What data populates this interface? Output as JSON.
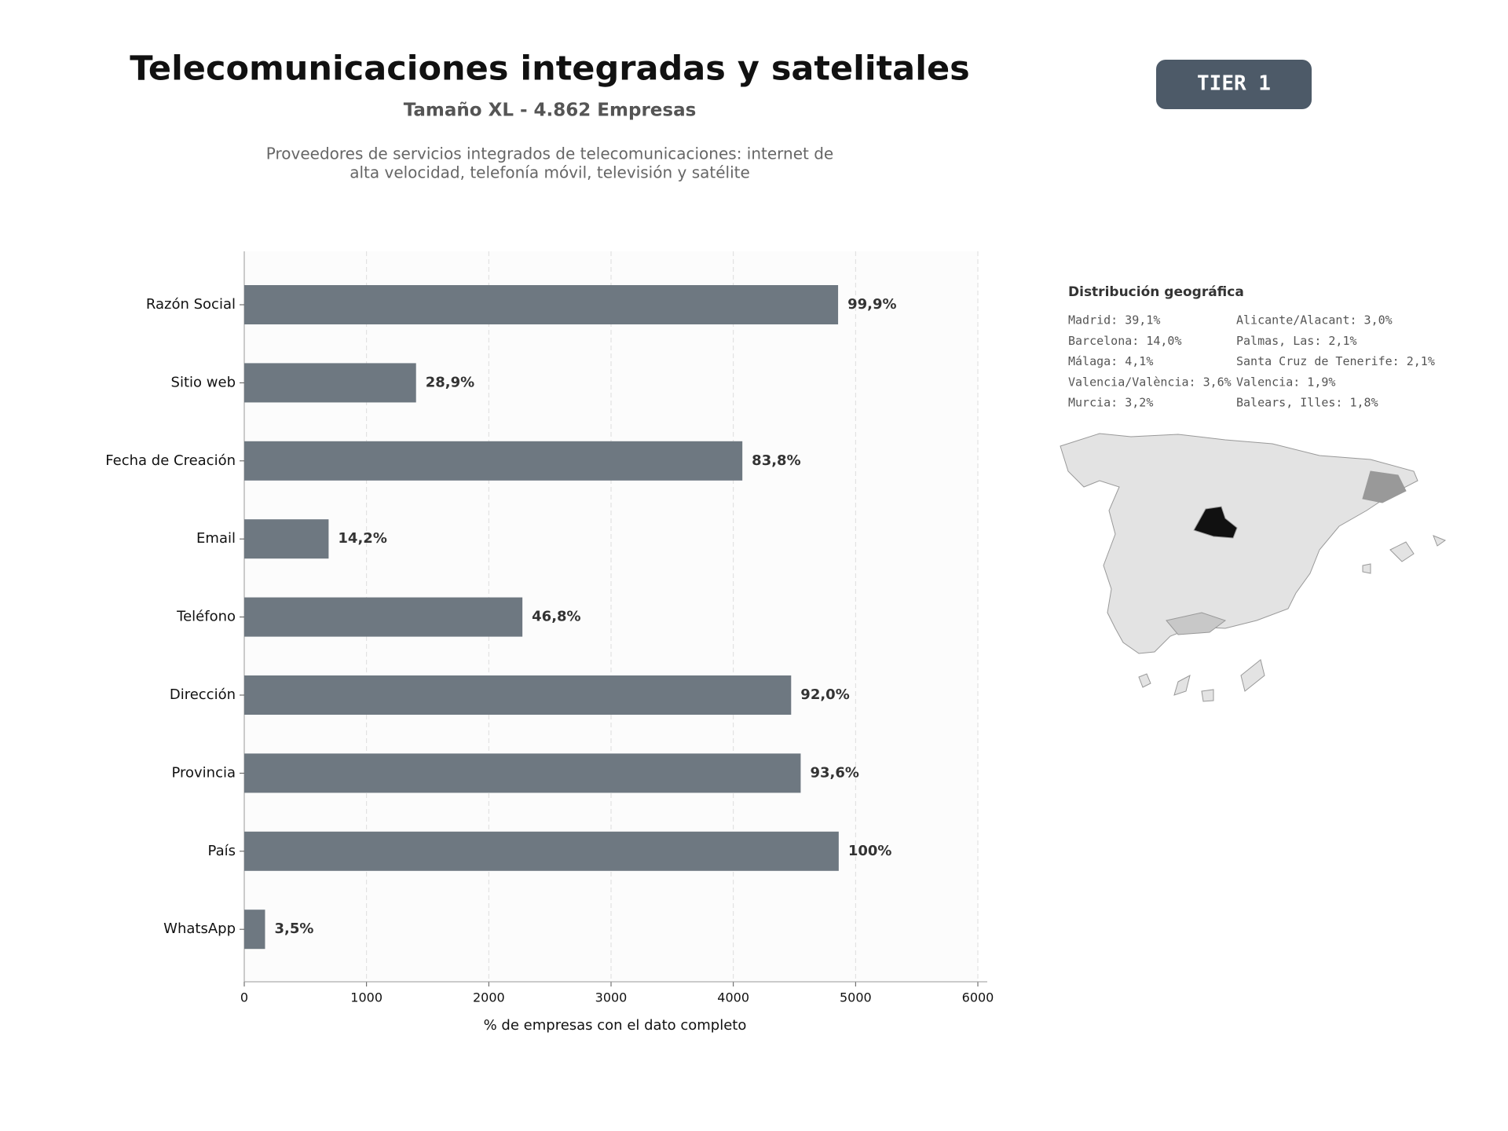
{
  "chart_data": {
    "type": "bar",
    "orientation": "horizontal",
    "title": "Telecomunicaciones integradas y satelitales",
    "subtitle": "Tamaño XL - 4.862 Empresas",
    "description": [
      "Proveedores de servicios integrados de telecomunicaciones: internet de",
      "alta velocidad, telefonía móvil, televisión y satélite"
    ],
    "xlabel": "% de empresas con el dato completo",
    "categories": [
      "Razón Social",
      "Sitio web",
      "Fecha de Creación",
      "Email",
      "Teléfono",
      "Dirección",
      "Provincia",
      "País",
      "WhatsApp"
    ],
    "values": [
      4857,
      1405,
      4074,
      690,
      2275,
      4473,
      4551,
      4862,
      170
    ],
    "value_labels": [
      "99,9%",
      "28,9%",
      "83,8%",
      "14,2%",
      "46,8%",
      "92,0%",
      "93,6%",
      "100%",
      "3,5%"
    ],
    "color": "#6e7881",
    "xlim": [
      0,
      6000
    ],
    "xticks": [
      0,
      1000,
      2000,
      3000,
      4000,
      5000,
      6000
    ],
    "grid": true
  },
  "badge": "TIER 1",
  "geo": {
    "title": "Distribución geográfica",
    "items": [
      "Madrid: 39,1%",
      "Barcelona: 14,0%",
      "Málaga: 4,1%",
      "Valencia/València: 3,6%",
      "Murcia: 3,2%",
      "Alicante/Alacant: 3,0%",
      "Palmas, Las: 2,1%",
      "Santa Cruz de Tenerife: 2,1%",
      "Valencia: 1,9%",
      "Balears, Illes: 1,8%"
    ]
  }
}
